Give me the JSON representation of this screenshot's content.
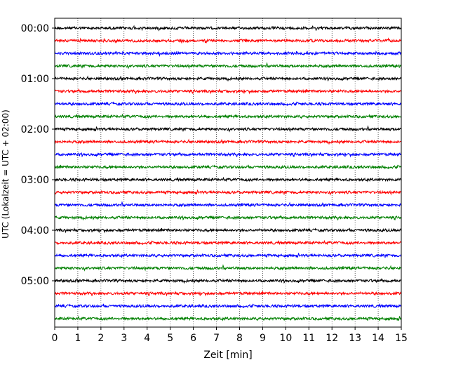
{
  "chart_data": {
    "type": "line",
    "title": "",
    "xlabel": "Zeit  [min]",
    "ylabel": "UTC (Lokalzeit = UTC + 02:00)",
    "xlim": [
      0,
      15
    ],
    "x_ticks": [
      "0",
      "1",
      "2",
      "3",
      "4",
      "5",
      "6",
      "7",
      "8",
      "9",
      "10",
      "11",
      "12",
      "13",
      "14",
      "15"
    ],
    "y_ticks": [
      "00:00",
      "01:00",
      "02:00",
      "03:00",
      "04:00",
      "05:00"
    ],
    "grid": {
      "vertical": true,
      "style": "dotted"
    },
    "trace_interval_minutes": 15,
    "trace_count": 24,
    "trace_colors": [
      "#000000",
      "#ff0000",
      "#0000ff",
      "#008000"
    ]
  }
}
